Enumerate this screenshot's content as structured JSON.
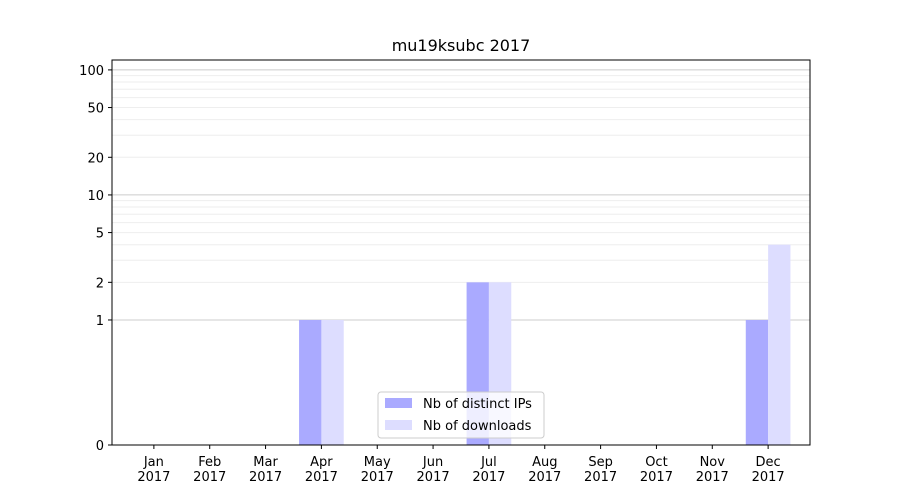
{
  "chart_data": {
    "type": "bar",
    "title": "mu19ksubc 2017",
    "xlabel": "",
    "ylabel": "",
    "yscale": "symlog",
    "ylim": [
      0,
      120
    ],
    "categories": [
      "Jan\n2017",
      "Feb\n2017",
      "Mar\n2017",
      "Apr\n2017",
      "May\n2017",
      "Jun\n2017",
      "Jul\n2017",
      "Aug\n2017",
      "Sep\n2017",
      "Oct\n2017",
      "Nov\n2017",
      "Dec\n2017"
    ],
    "series": [
      {
        "name": "Nb of distinct IPs",
        "color": "#aaaaff",
        "values": [
          0,
          0,
          0,
          1,
          0,
          0,
          2,
          0,
          0,
          0,
          0,
          1
        ]
      },
      {
        "name": "Nb of downloads",
        "color": "#ddddff",
        "values": [
          0,
          0,
          0,
          1,
          0,
          0,
          2,
          0,
          0,
          0,
          0,
          4
        ]
      }
    ],
    "yticks": [
      0,
      1,
      2,
      5,
      10,
      20,
      50,
      100
    ],
    "grid": true,
    "legend_position": "lower-center"
  }
}
